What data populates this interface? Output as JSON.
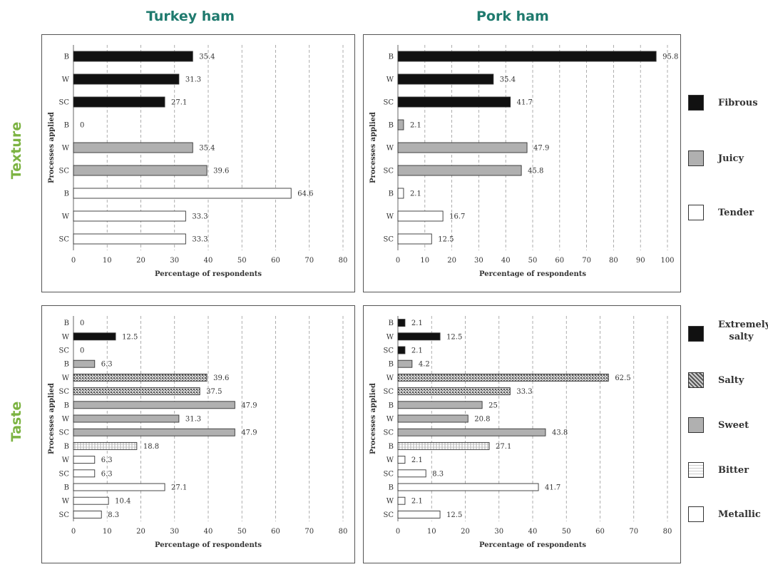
{
  "column_titles": [
    "Turkey ham",
    "Pork ham"
  ],
  "row_titles": [
    "Texture",
    "Taste"
  ],
  "legend_texture": [
    {
      "label": "Fibrous",
      "pattern": "black"
    },
    {
      "label": "Juicy",
      "pattern": "gray"
    },
    {
      "label": "Tender",
      "pattern": "white"
    }
  ],
  "legend_taste": [
    {
      "label": "Extremely salty",
      "pattern": "black"
    },
    {
      "label": "Salty",
      "pattern": "salty"
    },
    {
      "label": "Sweet",
      "pattern": "gray"
    },
    {
      "label": "Bitter",
      "pattern": "bitter"
    },
    {
      "label": "Metallic",
      "pattern": "white"
    }
  ],
  "colors": {
    "black": "#111111",
    "gray": "#b0b0b0",
    "white": "#ffffff",
    "title_teal": "#1f7a6e",
    "title_green": "#7cb342"
  },
  "chart_data": [
    {
      "type": "bar",
      "panel": "turkey-texture",
      "xlabel": "Percentage of respondents",
      "ylabel": "Processes applied",
      "xlim": [
        0,
        80
      ],
      "xticks": [
        0,
        10,
        20,
        30,
        40,
        50,
        60,
        70,
        80
      ],
      "grid": "vertical dashed",
      "bars": [
        {
          "category": "B",
          "value": 35.4,
          "label": "35.4",
          "pattern": "black"
        },
        {
          "category": "W",
          "value": 31.3,
          "label": "31.3",
          "pattern": "black"
        },
        {
          "category": "SC",
          "value": 27.1,
          "label": "27.1",
          "pattern": "black"
        },
        {
          "category": "B",
          "value": 0,
          "label": "0",
          "pattern": "gray"
        },
        {
          "category": "W",
          "value": 35.4,
          "label": "35.4",
          "pattern": "gray"
        },
        {
          "category": "SC",
          "value": 39.6,
          "label": "39.6",
          "pattern": "gray"
        },
        {
          "category": "B",
          "value": 64.6,
          "label": "64.6",
          "pattern": "white"
        },
        {
          "category": "W",
          "value": 33.3,
          "label": "33.3",
          "pattern": "white"
        },
        {
          "category": "SC",
          "value": 33.3,
          "label": "33.3",
          "pattern": "white"
        }
      ]
    },
    {
      "type": "bar",
      "panel": "pork-texture",
      "xlabel": "Percentage of respondents",
      "ylabel": "Processes applied",
      "xlim": [
        0,
        100
      ],
      "xticks": [
        0,
        10,
        20,
        30,
        40,
        50,
        60,
        70,
        80,
        90,
        100
      ],
      "grid": "vertical dashed",
      "bars": [
        {
          "category": "B",
          "value": 95.8,
          "label": "95.8",
          "pattern": "black"
        },
        {
          "category": "W",
          "value": 35.4,
          "label": "35.4",
          "pattern": "black"
        },
        {
          "category": "SC",
          "value": 41.7,
          "label": "41.7",
          "pattern": "black"
        },
        {
          "category": "B",
          "value": 2.1,
          "label": "2.1",
          "pattern": "gray"
        },
        {
          "category": "W",
          "value": 47.9,
          "label": "47.9",
          "pattern": "gray"
        },
        {
          "category": "SC",
          "value": 45.8,
          "label": "45.8",
          "pattern": "gray"
        },
        {
          "category": "B",
          "value": 2.1,
          "label": "2.1",
          "pattern": "white"
        },
        {
          "category": "W",
          "value": 16.7,
          "label": "16.7",
          "pattern": "white"
        },
        {
          "category": "SC",
          "value": 12.5,
          "label": "12.5",
          "pattern": "white"
        }
      ]
    },
    {
      "type": "bar",
      "panel": "turkey-taste",
      "xlabel": "Percentage of respondents",
      "ylabel": "Processes applied",
      "xlim": [
        0,
        80
      ],
      "xticks": [
        0,
        10,
        20,
        30,
        40,
        50,
        60,
        70,
        80
      ],
      "grid": "vertical dashed",
      "bars": [
        {
          "category": "B",
          "value": 0,
          "label": "0",
          "pattern": "black"
        },
        {
          "category": "W",
          "value": 12.5,
          "label": "12.5",
          "pattern": "black"
        },
        {
          "category": "SC",
          "value": 0,
          "label": "0",
          "pattern": "black"
        },
        {
          "category": "B",
          "value": 6.3,
          "label": "6.3",
          "pattern": "gray"
        },
        {
          "category": "W",
          "value": 39.6,
          "label": "39.6",
          "pattern": "salty"
        },
        {
          "category": "SC",
          "value": 37.5,
          "label": "37.5",
          "pattern": "salty"
        },
        {
          "category": "B",
          "value": 47.9,
          "label": "47.9",
          "pattern": "gray"
        },
        {
          "category": "W",
          "value": 31.3,
          "label": "31.3",
          "pattern": "gray"
        },
        {
          "category": "SC",
          "value": 47.9,
          "label": "47.9",
          "pattern": "gray"
        },
        {
          "category": "B",
          "value": 18.8,
          "label": "18.8",
          "pattern": "bitter"
        },
        {
          "category": "W",
          "value": 6.3,
          "label": "6.3",
          "pattern": "white"
        },
        {
          "category": "SC",
          "value": 6.3,
          "label": "6.3",
          "pattern": "white"
        },
        {
          "category": "B",
          "value": 27.1,
          "label": "27.1",
          "pattern": "white"
        },
        {
          "category": "W",
          "value": 10.4,
          "label": "10.4",
          "pattern": "white"
        },
        {
          "category": "SC",
          "value": 8.3,
          "label": "8.3",
          "pattern": "white"
        }
      ]
    },
    {
      "type": "bar",
      "panel": "pork-taste",
      "xlabel": "Percentage of respondents",
      "ylabel": "Processes applied",
      "xlim": [
        0,
        80
      ],
      "xticks": [
        0,
        10,
        20,
        30,
        40,
        50,
        60,
        70,
        80
      ],
      "grid": "vertical dashed",
      "bars": [
        {
          "category": "B",
          "value": 2.1,
          "label": "2.1",
          "pattern": "black"
        },
        {
          "category": "W",
          "value": 12.5,
          "label": "12.5",
          "pattern": "black"
        },
        {
          "category": "SC",
          "value": 2.1,
          "label": "2.1",
          "pattern": "black"
        },
        {
          "category": "B",
          "value": 4.2,
          "label": "4.2",
          "pattern": "gray"
        },
        {
          "category": "W",
          "value": 62.5,
          "label": "62.5",
          "pattern": "salty"
        },
        {
          "category": "SC",
          "value": 33.3,
          "label": "33.3",
          "pattern": "salty"
        },
        {
          "category": "B",
          "value": 25,
          "label": "25",
          "pattern": "gray"
        },
        {
          "category": "W",
          "value": 20.8,
          "label": "20.8",
          "pattern": "gray"
        },
        {
          "category": "SC",
          "value": 43.8,
          "label": "43.8",
          "pattern": "gray"
        },
        {
          "category": "B",
          "value": 27.1,
          "label": "27.1",
          "pattern": "bitter"
        },
        {
          "category": "W",
          "value": 2.1,
          "label": "2.1",
          "pattern": "white"
        },
        {
          "category": "SC",
          "value": 8.3,
          "label": "8.3",
          "pattern": "white"
        },
        {
          "category": "B",
          "value": 41.7,
          "label": "41.7",
          "pattern": "white"
        },
        {
          "category": "W",
          "value": 2.1,
          "label": "2.1",
          "pattern": "white"
        },
        {
          "category": "SC",
          "value": 12.5,
          "label": "12.5",
          "pattern": "white"
        }
      ]
    }
  ]
}
